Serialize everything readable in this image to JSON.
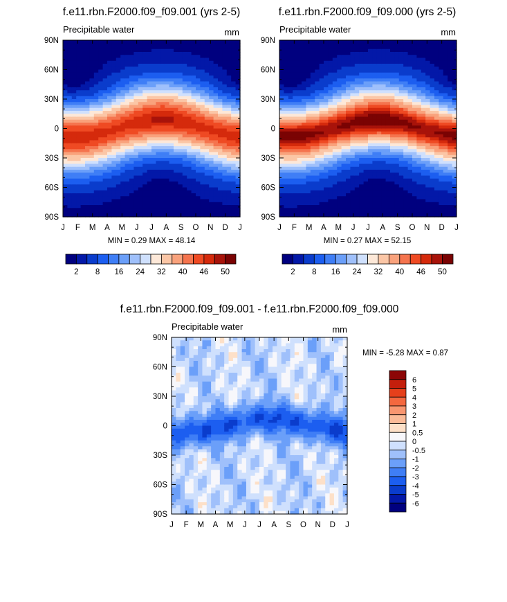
{
  "palettes": {
    "absolute": [
      "#00007f",
      "#0318a8",
      "#0a3ccc",
      "#1c5ef0",
      "#3f7ef6",
      "#6b9ff9",
      "#9fc0fb",
      "#cfe0fd",
      "#fde8d8",
      "#fbc6a6",
      "#f9a27c",
      "#f5744e",
      "#ef4a23",
      "#d52a0c",
      "#a8130a",
      "#7a0303"
    ],
    "difference": [
      "#00007f",
      "#0318a8",
      "#0a3ccc",
      "#1c5ef0",
      "#3f7ef6",
      "#6b9ff9",
      "#9fc0fb",
      "#cfe0fd",
      "#f7f7fb",
      "#fde0c8",
      "#fbbb98",
      "#f99670",
      "#f4683f",
      "#e5401b",
      "#c41f0c",
      "#8c0606"
    ],
    "land_mask": "#7f7f7f"
  },
  "chart_data": [
    {
      "id": "panel_001",
      "type": "heatmap",
      "title": "f.e11.rbn.F2000.f09_f09.001 (yrs 2-5)",
      "left_label": "Precipitable water",
      "right_label": "mm",
      "x_tick_labels": [
        "J",
        "F",
        "M",
        "A",
        "M",
        "J",
        "J",
        "A",
        "S",
        "O",
        "N",
        "D",
        "J"
      ],
      "y_tick_labels": [
        "90N",
        "60N",
        "30N",
        "0",
        "30S",
        "60S",
        "90S"
      ],
      "x_months": [
        0,
        1,
        2,
        3,
        4,
        5,
        6,
        7,
        8,
        9,
        10,
        11,
        12
      ],
      "y_lat": [
        90,
        60,
        30,
        0,
        -30,
        -60,
        -90
      ],
      "ylim": [
        -90,
        90
      ],
      "stats_text": "MIN =   0.29 MAX =  48.14",
      "min": 0.29,
      "max": 48.14,
      "colorbar_levels": [
        0,
        2,
        4,
        8,
        12,
        16,
        20,
        24,
        28,
        32,
        36,
        40,
        43,
        46,
        48,
        50
      ],
      "colorbar_labels": [
        "2",
        "8",
        "16",
        "24",
        "32",
        "40",
        "46",
        "50"
      ],
      "palette": "absolute"
    },
    {
      "id": "panel_000",
      "type": "heatmap",
      "title": "f.e11.rbn.F2000.f09_f09.000 (yrs 2-5)",
      "left_label": "Precipitable water",
      "right_label": "mm",
      "x_tick_labels": [
        "J",
        "F",
        "M",
        "A",
        "M",
        "J",
        "J",
        "A",
        "S",
        "O",
        "N",
        "D",
        "J"
      ],
      "y_tick_labels": [
        "90N",
        "60N",
        "30N",
        "0",
        "30S",
        "60S",
        "90S"
      ],
      "x_months": [
        0,
        1,
        2,
        3,
        4,
        5,
        6,
        7,
        8,
        9,
        10,
        11,
        12
      ],
      "y_lat": [
        90,
        60,
        30,
        0,
        -30,
        -60,
        -90
      ],
      "ylim": [
        -90,
        90
      ],
      "stats_text": "MIN =   0.27 MAX =  52.15",
      "min": 0.27,
      "max": 52.15,
      "colorbar_levels": [
        0,
        2,
        4,
        8,
        12,
        16,
        20,
        24,
        28,
        32,
        36,
        40,
        43,
        46,
        48,
        50
      ],
      "colorbar_labels": [
        "2",
        "8",
        "16",
        "24",
        "32",
        "40",
        "46",
        "50"
      ],
      "palette": "absolute"
    },
    {
      "id": "panel_diff",
      "type": "heatmap",
      "title": "f.e11.rbn.F2000.f09_f09.001 - f.e11.rbn.F2000.f09_f09.000",
      "left_label": "Precipitable water",
      "right_label": "mm",
      "x_tick_labels": [
        "J",
        "F",
        "M",
        "A",
        "M",
        "J",
        "J",
        "A",
        "S",
        "O",
        "N",
        "D",
        "J"
      ],
      "y_tick_labels": [
        "90N",
        "60N",
        "30N",
        "0",
        "30S",
        "60S",
        "90S"
      ],
      "x_months": [
        0,
        1,
        2,
        3,
        4,
        5,
        6,
        7,
        8,
        9,
        10,
        11,
        12
      ],
      "y_lat": [
        90,
        60,
        30,
        0,
        -30,
        -60,
        -90
      ],
      "ylim": [
        -90,
        90
      ],
      "stats_text": "MIN =  -5.28 MAX =   0.87",
      "min": -5.28,
      "max": 0.87,
      "colorbar_levels": [
        -6,
        -5,
        -4,
        -3,
        -2,
        -1,
        -0.5,
        0,
        0.5,
        1,
        2,
        3,
        4,
        5,
        6
      ],
      "colorbar_labels": [
        "6",
        "5",
        "4",
        "3",
        "2",
        "1",
        "0.5",
        "0",
        "-0.5",
        "-1",
        "-2",
        "-3",
        "-4",
        "-5",
        "-6"
      ],
      "palette": "difference"
    }
  ]
}
